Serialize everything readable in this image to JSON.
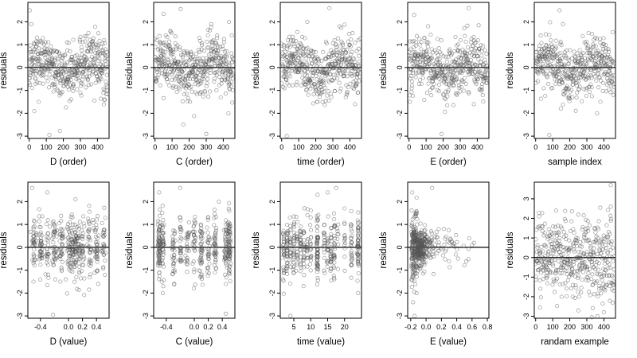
{
  "chart_data": [
    {
      "type": "scatter",
      "xlabel": "D (order)",
      "ylabel": "residuals",
      "xlim": [
        -8,
        468
      ],
      "ylim": [
        -3.1,
        2.85
      ],
      "xticks": [
        0,
        100,
        200,
        300,
        400
      ],
      "xtick_labels": [
        "0",
        "100",
        "200",
        "300",
        "400"
      ],
      "yticks": [
        -3,
        -2,
        -1,
        0,
        1,
        2
      ],
      "ytick_labels": [
        "-3",
        "-2",
        "-1",
        "0",
        "1",
        "2"
      ],
      "hline": 0,
      "points_approx": 460,
      "pattern": "order",
      "x": [
        3,
        12,
        30,
        55,
        95,
        118,
        130,
        135,
        175,
        240,
        300,
        340,
        405,
        420,
        440,
        455
      ],
      "y": [
        2.5,
        1.9,
        -1.9,
        -1.5,
        1.1,
        -2.95,
        0.7,
        0.4,
        0.6,
        0.2,
        -1.1,
        0.1,
        1.5,
        0.9,
        -1.4,
        -1.0
      ]
    },
    {
      "type": "scatter",
      "xlabel": "C (order)",
      "ylabel": "residuals",
      "xlim": [
        -8,
        468
      ],
      "ylim": [
        -3.1,
        2.85
      ],
      "xticks": [
        0,
        100,
        200,
        300,
        400
      ],
      "xtick_labels": [
        "0",
        "100",
        "200",
        "300",
        "400"
      ],
      "yticks": [
        -3,
        -2,
        -1,
        0,
        1,
        2
      ],
      "ytick_labels": [
        "-3",
        "-2",
        "-1",
        "0",
        "1",
        "2"
      ],
      "hline": 0,
      "points_approx": 460,
      "pattern": "order",
      "x": [
        50,
        90,
        150,
        205,
        260,
        300,
        330,
        360,
        430,
        450
      ],
      "y": [
        2.35,
        1.6,
        2.55,
        -1.5,
        1.3,
        -2.9,
        1.9,
        -1.0,
        -2.0,
        1.4
      ]
    },
    {
      "type": "scatter",
      "xlabel": "time (order)",
      "ylabel": "residuals",
      "xlim": [
        -8,
        468
      ],
      "ylim": [
        -3.1,
        2.85
      ],
      "xticks": [
        0,
        100,
        200,
        300,
        400
      ],
      "xtick_labels": [
        "0",
        "100",
        "200",
        "300",
        "400"
      ],
      "yticks": [
        -3,
        -2,
        -1,
        0,
        1,
        2
      ],
      "ytick_labels": [
        "-3",
        "-2",
        "-1",
        "0",
        "1",
        "2"
      ],
      "hline": 0,
      "points_approx": 460,
      "pattern": "order",
      "x": [
        30,
        150,
        210,
        280,
        340,
        430
      ],
      "y": [
        -3.0,
        2.0,
        -1.5,
        2.6,
        1.8,
        -1.6
      ]
    },
    {
      "type": "scatter",
      "xlabel": "E (order)",
      "ylabel": "residuals",
      "xlim": [
        -8,
        468
      ],
      "ylim": [
        -3.1,
        2.85
      ],
      "xticks": [
        0,
        100,
        200,
        300,
        400
      ],
      "xtick_labels": [
        "0",
        "100",
        "200",
        "300",
        "400"
      ],
      "yticks": [
        -3,
        -2,
        -1,
        0,
        1,
        2
      ],
      "ytick_labels": [
        "-3",
        "-2",
        "-1",
        "0",
        "1",
        "2"
      ],
      "hline": 0,
      "points_approx": 460,
      "pattern": "order",
      "x": [
        5,
        30,
        90,
        190,
        350,
        380
      ],
      "y": [
        -1.5,
        2.3,
        1.3,
        -2.9,
        2.6,
        -1.6
      ]
    },
    {
      "type": "scatter",
      "xlabel": "sample index",
      "ylabel": "residuals",
      "xlim": [
        -8,
        468
      ],
      "ylim": [
        -3.1,
        2.85
      ],
      "xticks": [
        0,
        100,
        200,
        300,
        400
      ],
      "xtick_labels": [
        "0",
        "100",
        "200",
        "300",
        "400"
      ],
      "yticks": [
        -3,
        -2,
        -1,
        0,
        1,
        2
      ],
      "ytick_labels": [
        "-3",
        "-2",
        "-1",
        "0",
        "1",
        "2"
      ],
      "hline": 0,
      "points_approx": 460,
      "pattern": "order",
      "x": [
        30,
        80,
        140,
        160,
        360,
        380
      ],
      "y": [
        1.4,
        -2.95,
        2.5,
        1.9,
        -2.0,
        -1.5
      ]
    },
    {
      "type": "scatter",
      "xlabel": "D (value)",
      "ylabel": "residuals",
      "xlim": [
        -0.58,
        0.58
      ],
      "ylim": [
        -3.1,
        2.85
      ],
      "xticks": [
        -0.4,
        0.0,
        0.2,
        0.4
      ],
      "xtick_labels": [
        "-0.4",
        "0.0",
        "0.2",
        "0.4"
      ],
      "yticks": [
        -3,
        -2,
        -1,
        0,
        1,
        2
      ],
      "ytick_labels": [
        "-3",
        "-2",
        "-1",
        "0",
        "1",
        "2"
      ],
      "hline": 0,
      "points_approx": 460,
      "pattern": "dvalue",
      "x": [
        -0.52,
        -0.5,
        -0.3,
        -0.22,
        0.1,
        0.35,
        0.52
      ],
      "y": [
        2.6,
        -1.5,
        2.4,
        -2.95,
        2.1,
        1.2,
        -1.2
      ]
    },
    {
      "type": "scatter",
      "xlabel": "C (value)",
      "ylabel": "residuals",
      "xlim": [
        -0.58,
        0.58
      ],
      "ylim": [
        -3.1,
        2.85
      ],
      "xticks": [
        -0.4,
        0.0,
        0.2,
        0.4
      ],
      "xtick_labels": [
        "-0.4",
        "0.0",
        "0.2",
        "0.4"
      ],
      "yticks": [
        -3,
        -2,
        -1,
        0,
        1,
        2
      ],
      "ytick_labels": [
        "-3",
        "-2",
        "-1",
        "0",
        "1",
        "2"
      ],
      "hline": 0,
      "points_approx": 460,
      "pattern": "cvalue",
      "x": [
        -0.5,
        -0.45,
        -0.2,
        0.35,
        0.45,
        0.5
      ],
      "y": [
        2.4,
        -2.0,
        2.6,
        2.0,
        -2.9,
        1.6
      ]
    },
    {
      "type": "scatter",
      "xlabel": "time (value)",
      "ylabel": "residuals",
      "xlim": [
        1,
        25
      ],
      "ylim": [
        -3.1,
        2.85
      ],
      "xticks": [
        5,
        10,
        15,
        20
      ],
      "xtick_labels": [
        "5",
        "10",
        "15",
        "20"
      ],
      "yticks": [
        -3,
        -2,
        -1,
        0,
        1,
        2
      ],
      "ytick_labels": [
        "-3",
        "-2",
        "-1",
        "0",
        "1",
        "2"
      ],
      "hline": 0,
      "points_approx": 460,
      "pattern": "tvalue",
      "x": [
        4,
        12,
        15,
        17.5,
        24
      ],
      "y": [
        -3.0,
        2.3,
        2.4,
        2.6,
        -2.0
      ]
    },
    {
      "type": "scatter",
      "xlabel": "E (value)",
      "ylabel": "residuals",
      "xlim": [
        -0.24,
        0.82
      ],
      "ylim": [
        -3.1,
        2.85
      ],
      "xticks": [
        -0.2,
        0.0,
        0.2,
        0.4,
        0.6,
        0.8
      ],
      "xtick_labels": [
        "-0.2",
        "0.0",
        "0.2",
        "0.4",
        "0.6",
        "0.8"
      ],
      "yticks": [
        -3,
        -2,
        -1,
        0,
        1,
        2
      ],
      "ytick_labels": [
        "-3",
        "-2",
        "-1",
        "0",
        "1",
        "2"
      ],
      "hline": 0,
      "points_approx": 460,
      "pattern": "evalue",
      "x": [
        -0.18,
        -0.17,
        -0.15,
        0.08,
        0.6
      ],
      "y": [
        2.4,
        -2.4,
        -3.0,
        2.6,
        0.1
      ]
    },
    {
      "type": "scatter",
      "xlabel": "randam example",
      "ylabel": "residuals",
      "xlim": [
        -8,
        468
      ],
      "ylim": [
        -3.1,
        3.85
      ],
      "xticks": [
        0,
        100,
        200,
        300,
        400
      ],
      "xtick_labels": [
        "0",
        "100",
        "200",
        "300",
        "400"
      ],
      "yticks": [
        -3,
        -2,
        -1,
        0,
        1,
        2,
        3
      ],
      "ytick_labels": [
        "-3",
        "-2",
        "-1",
        "0",
        "1",
        "2",
        "3"
      ],
      "hline": 0,
      "points_approx": 460,
      "pattern": "random",
      "x": [
        440,
        20,
        250,
        400,
        120,
        440
      ],
      "y": [
        3.7,
        2.1,
        -2.7,
        -2.8,
        2.4,
        2.6
      ]
    }
  ]
}
